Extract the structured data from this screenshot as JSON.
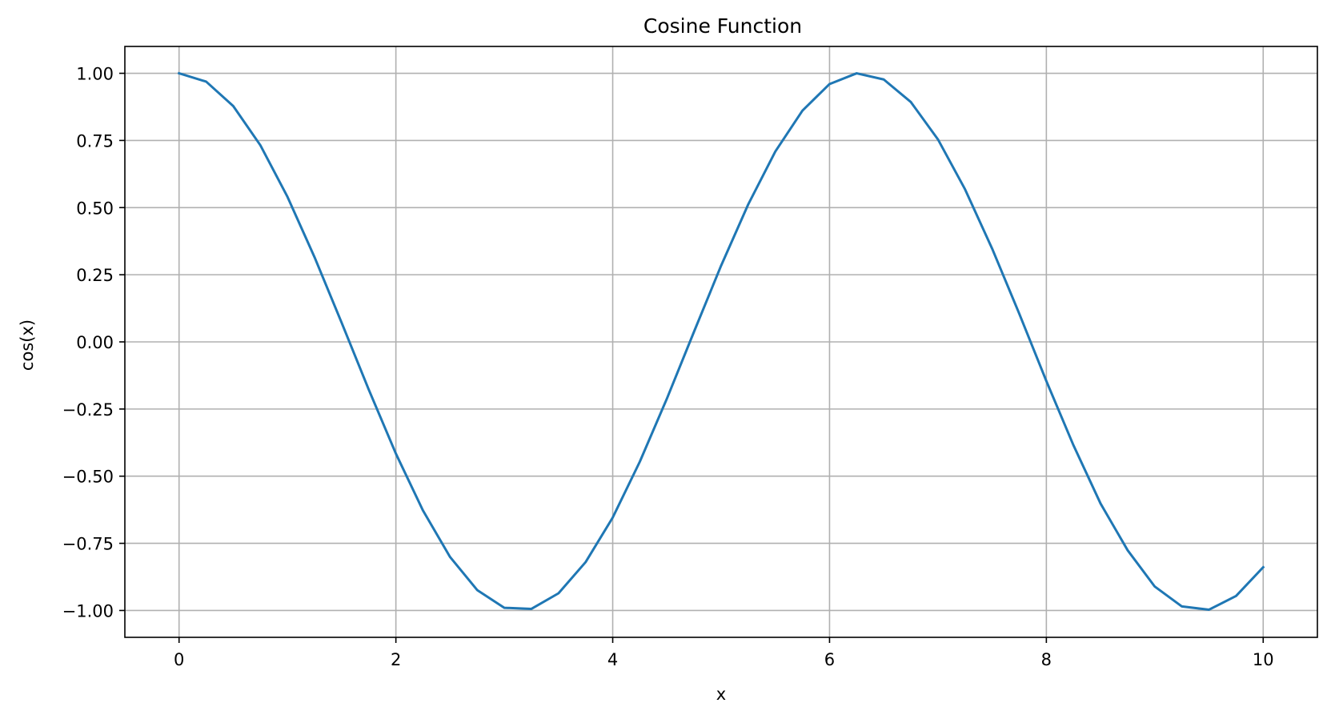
{
  "chart_data": {
    "type": "line",
    "title": "Cosine Function",
    "xlabel": "x",
    "ylabel": "cos(x)",
    "xlim": [
      -0.5,
      10.5
    ],
    "ylim": [
      -1.1,
      1.1
    ],
    "grid": true,
    "line_color": "#1f77b4",
    "grid_color": "#b0b0b0",
    "x_ticks": [
      0,
      2,
      4,
      6,
      8,
      10
    ],
    "x_tick_labels": [
      "0",
      "2",
      "4",
      "6",
      "8",
      "10"
    ],
    "y_ticks": [
      1.0,
      0.75,
      0.5,
      0.25,
      0.0,
      -0.25,
      -0.5,
      -0.75,
      -1.0
    ],
    "y_tick_labels": [
      "1.00",
      "0.75",
      "0.50",
      "0.25",
      "0.00",
      "−0.25",
      "−0.50",
      "−0.75",
      "−1.00"
    ],
    "series": [
      {
        "x": [
          0,
          0.25,
          0.5,
          0.75,
          1,
          1.25,
          1.5,
          1.75,
          2,
          2.25,
          2.5,
          2.75,
          3,
          3.25,
          3.5,
          3.75,
          4,
          4.25,
          4.5,
          4.75,
          5,
          5.25,
          5.5,
          5.75,
          6,
          6.25,
          6.5,
          6.75,
          7,
          7.25,
          7.5,
          7.75,
          8,
          8.25,
          8.5,
          8.75,
          9,
          9.25,
          9.5,
          9.75,
          10
        ],
        "values": [
          1.0,
          0.969,
          0.878,
          0.732,
          0.54,
          0.315,
          0.071,
          -0.178,
          -0.416,
          -0.628,
          -0.801,
          -0.924,
          -0.99,
          -0.994,
          -0.936,
          -0.82,
          -0.654,
          -0.446,
          -0.211,
          0.038,
          0.284,
          0.512,
          0.709,
          0.861,
          0.96,
          1.0,
          0.977,
          0.893,
          0.754,
          0.568,
          0.347,
          0.105,
          -0.146,
          -0.385,
          -0.602,
          -0.776,
          -0.911,
          -0.985,
          -0.997,
          -0.946,
          -0.839
        ]
      }
    ]
  }
}
